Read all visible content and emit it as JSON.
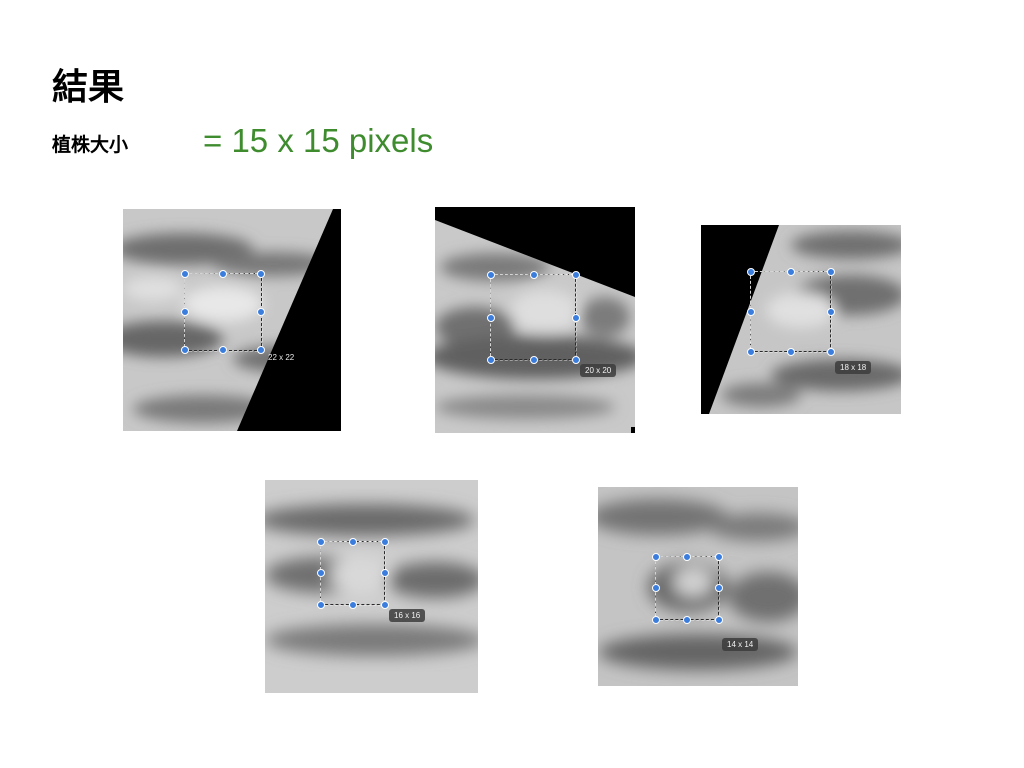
{
  "title": "結果",
  "subtitle_label": "植株大小",
  "subtitle_value": "= 15 x 15 pixels",
  "panels": [
    {
      "size_label": "22 x 22"
    },
    {
      "size_label": "20 x 20"
    },
    {
      "size_label": "18 x 18"
    },
    {
      "size_label": "16 x 16"
    },
    {
      "size_label": "14 x 14"
    }
  ]
}
